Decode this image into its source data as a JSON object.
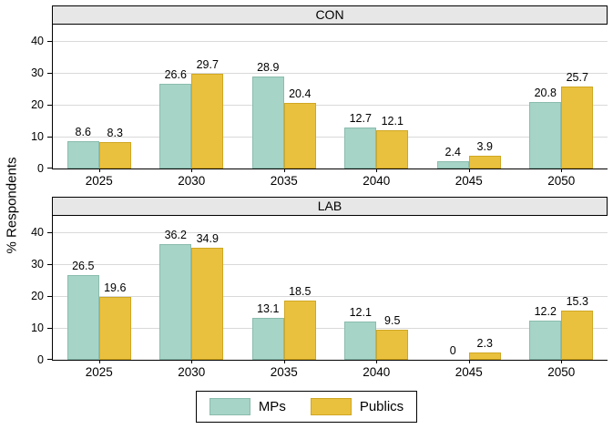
{
  "ylabel": "% Respondents",
  "legend": {
    "items": [
      {
        "label": "MPs",
        "color": "#a6d4c6",
        "border": "#8bbcad"
      },
      {
        "label": "Publics",
        "color": "#eac13f",
        "border": "#d0a723"
      }
    ]
  },
  "chart_data": [
    {
      "type": "bar",
      "title": "CON",
      "categories": [
        "2025",
        "2030",
        "2035",
        "2040",
        "2045",
        "2050"
      ],
      "series": [
        {
          "name": "MPs",
          "values": [
            8.6,
            26.6,
            28.9,
            12.7,
            2.4,
            20.8
          ]
        },
        {
          "name": "Publics",
          "values": [
            8.3,
            29.7,
            20.4,
            12.1,
            3.9,
            25.7
          ]
        }
      ],
      "xlabel": "",
      "ylabel": "% Respondents",
      "yticks": [
        0,
        10,
        20,
        30,
        40
      ],
      "ylim": [
        0,
        45
      ],
      "grid": true,
      "legend_position": "bottom"
    },
    {
      "type": "bar",
      "title": "LAB",
      "categories": [
        "2025",
        "2030",
        "2035",
        "2040",
        "2045",
        "2050"
      ],
      "series": [
        {
          "name": "MPs",
          "values": [
            26.5,
            36.2,
            13.1,
            12.1,
            0,
            12.2
          ]
        },
        {
          "name": "Publics",
          "values": [
            19.6,
            34.9,
            18.5,
            9.5,
            2.3,
            15.3
          ]
        }
      ],
      "xlabel": "",
      "ylabel": "% Respondents",
      "yticks": [
        0,
        10,
        20,
        30,
        40
      ],
      "ylim": [
        0,
        45
      ],
      "grid": true,
      "legend_position": "bottom"
    }
  ]
}
